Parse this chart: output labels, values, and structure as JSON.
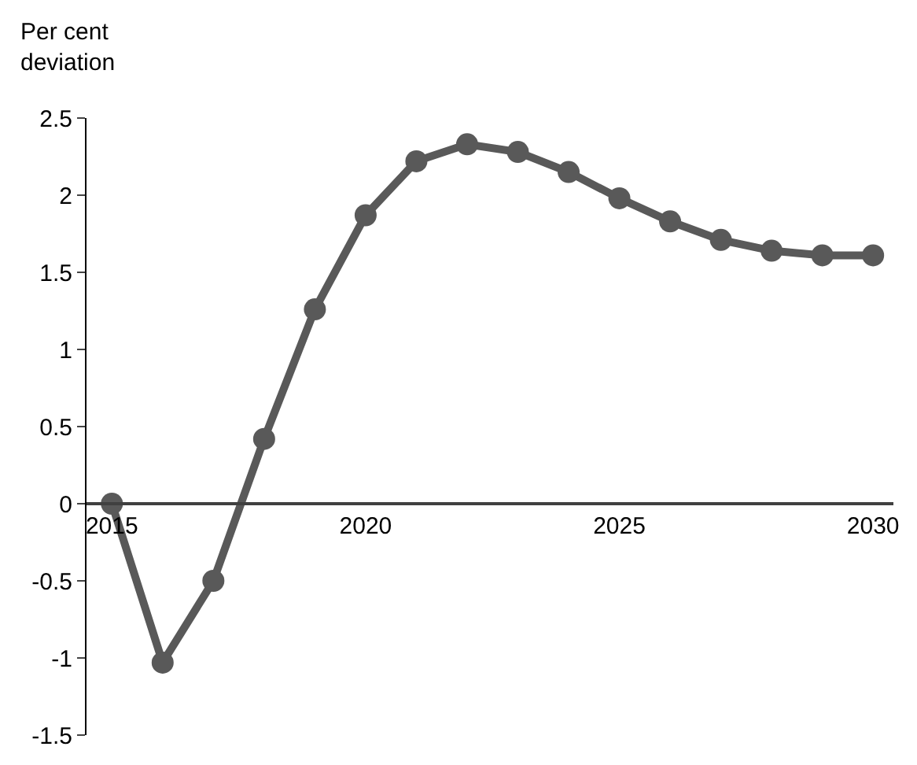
{
  "chart_data": {
    "type": "line",
    "ylabel": "Per cent\ndeviation",
    "x": [
      2015,
      2016,
      2017,
      2018,
      2019,
      2020,
      2021,
      2022,
      2023,
      2024,
      2025,
      2026,
      2027,
      2028,
      2029,
      2030
    ],
    "series": [
      {
        "color": "#595959",
        "values": [
          0,
          -1.03,
          -0.5,
          0.42,
          1.26,
          1.87,
          2.22,
          2.33,
          2.28,
          2.15,
          1.98,
          1.83,
          1.71,
          1.64,
          1.61,
          1.61
        ]
      }
    ],
    "xlim": [
      2014.5,
      2030.4
    ],
    "xticks": [
      2015,
      2020,
      2025,
      2030
    ],
    "ylim": [
      -1.5,
      2.5
    ],
    "yticks": [
      -1.5,
      -1,
      -0.5,
      0,
      0.5,
      1,
      1.5,
      2,
      2.5
    ],
    "marker": "circle",
    "line_style": "solid"
  }
}
